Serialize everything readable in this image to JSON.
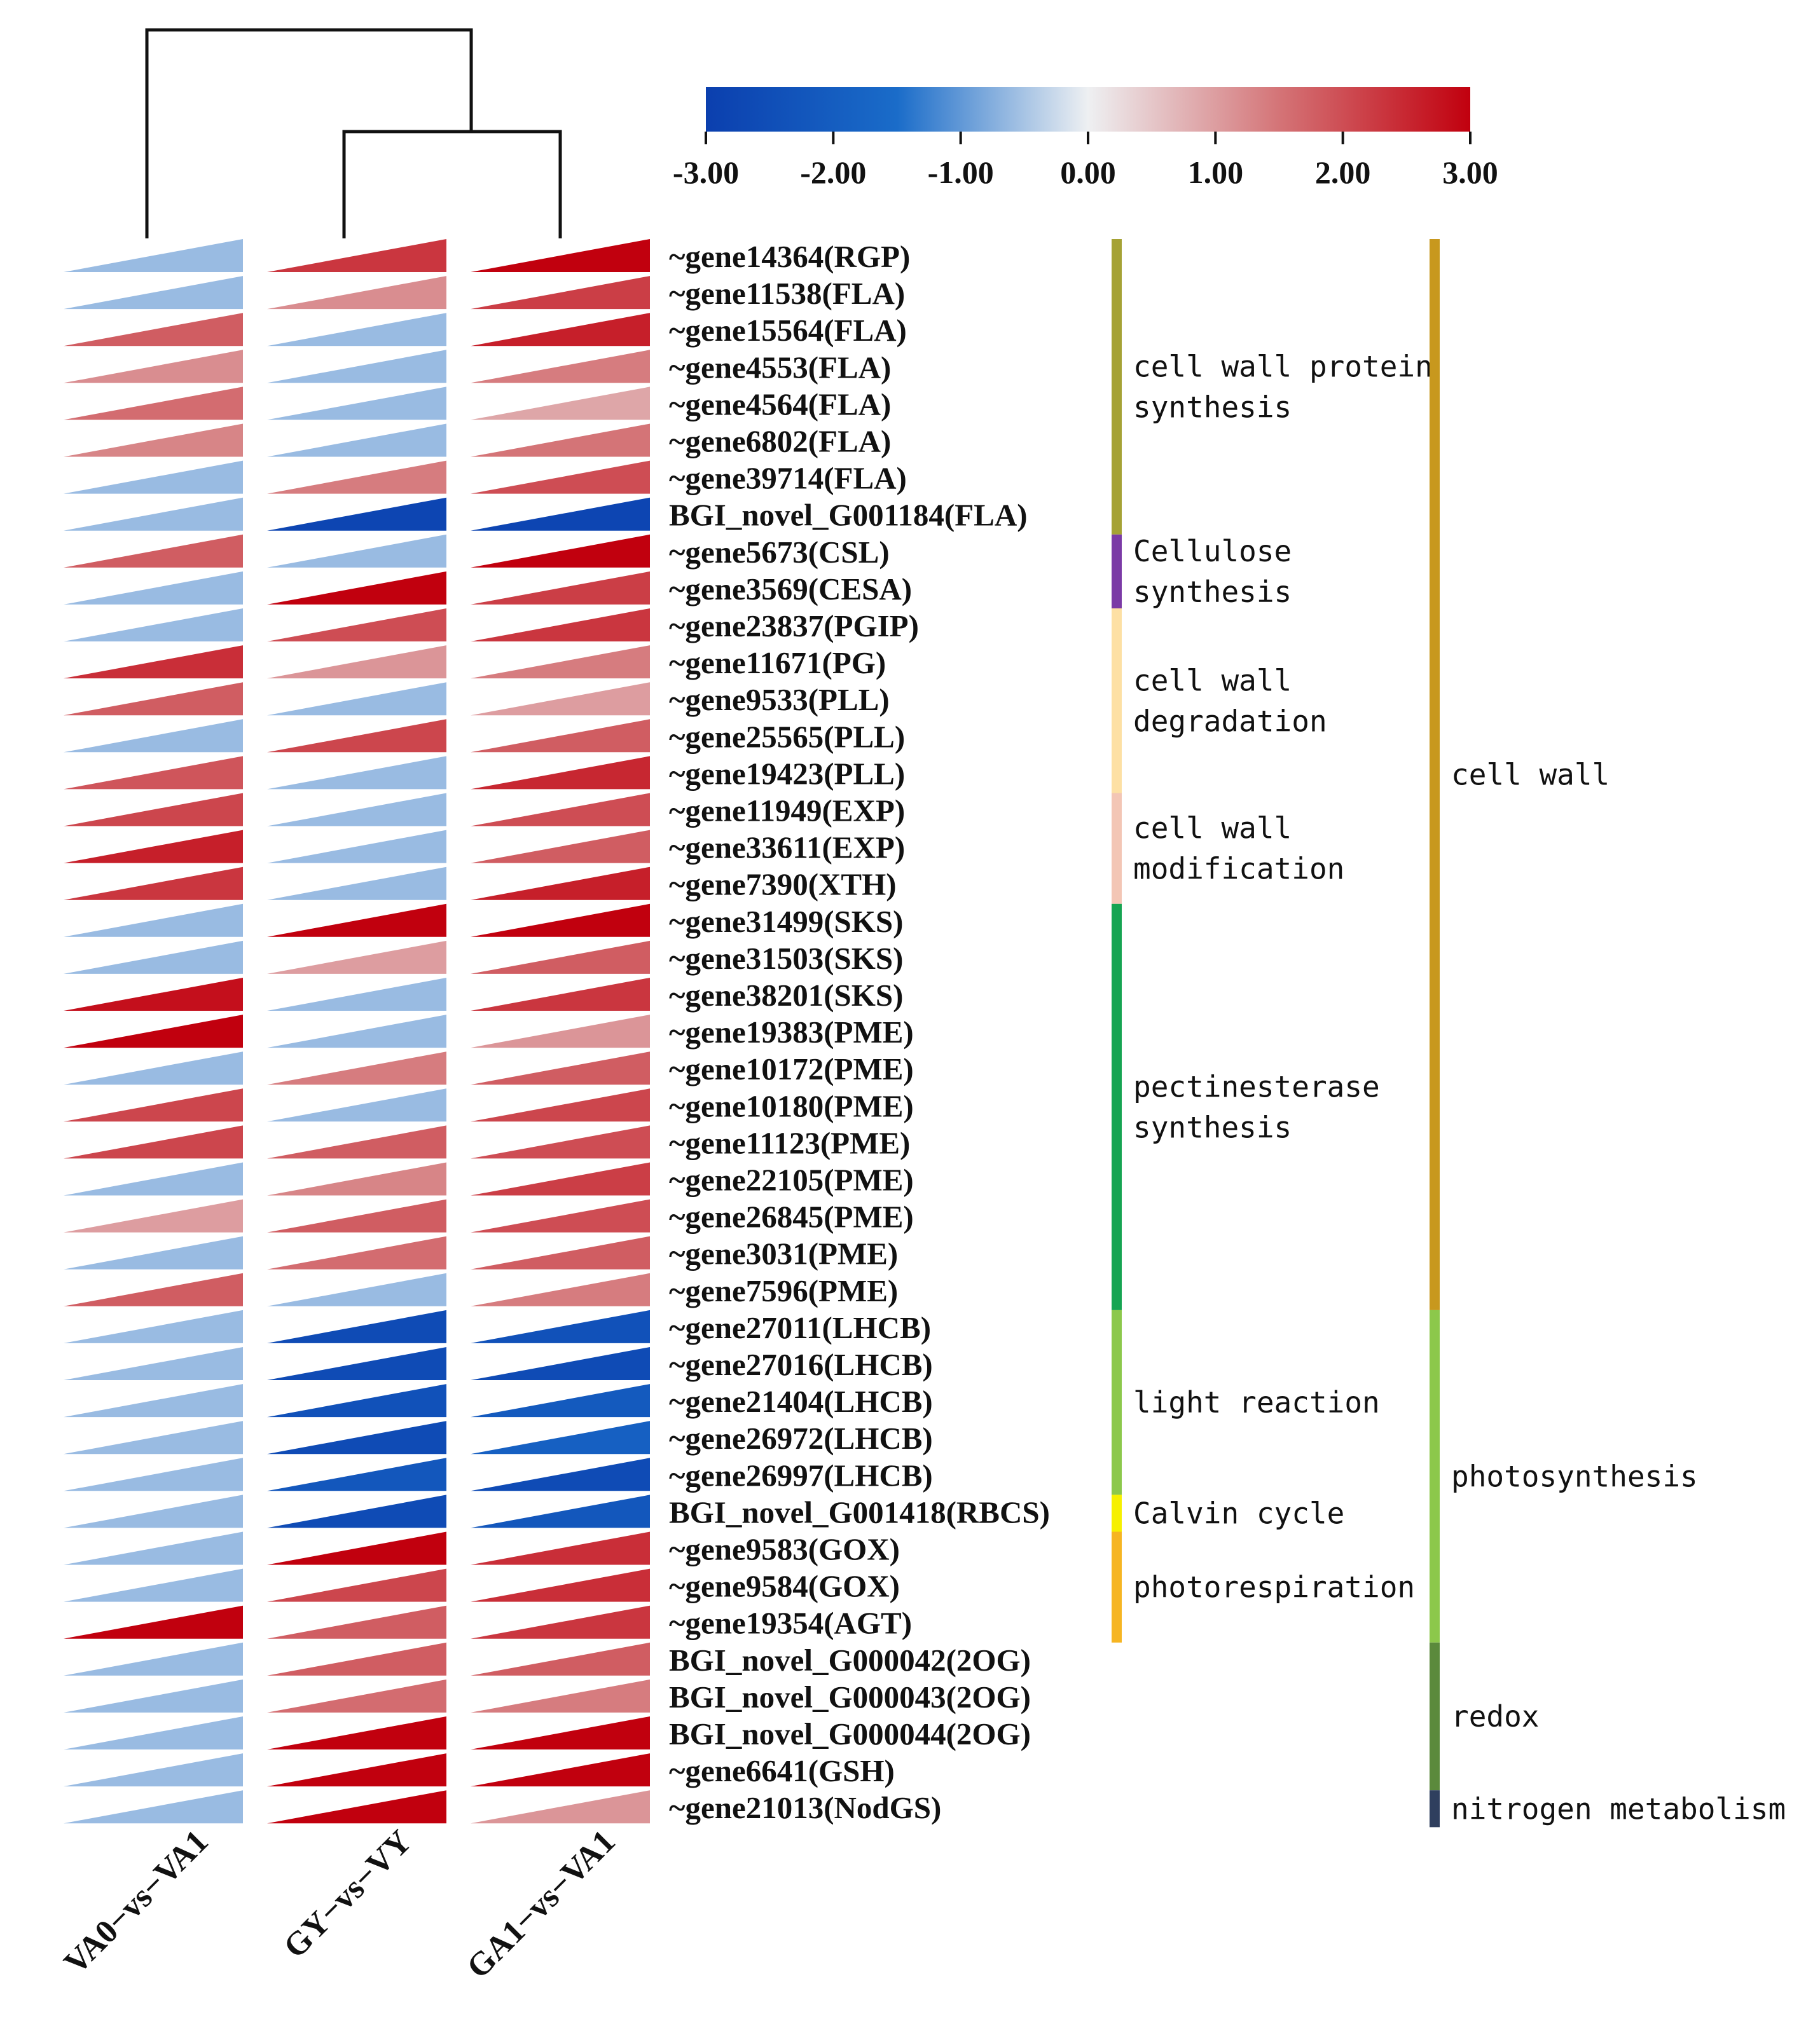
{
  "chart_data": {
    "type": "heatmap",
    "colorbar": {
      "ticks": [
        "-3.00",
        "-2.00",
        "-1.00",
        "0.00",
        "1.00",
        "2.00",
        "3.00"
      ],
      "range": [
        -3,
        3
      ],
      "stops": [
        "#0b3fae",
        "#1a6cc9",
        "#eef0f2",
        "#d47477",
        "#c1000e"
      ]
    },
    "columns": [
      "VA0−vs−VA1",
      "GY−vs−VY",
      "GA1−vs−VA1"
    ],
    "dendrogram": "((GY−vs−VY, GA1−vs−VA1), VA0−vs−VA1)",
    "rows": [
      {
        "gene": "~gene14364(RGP)",
        "values": [
          -0.6,
          2.3,
          3.0
        ]
      },
      {
        "gene": "~gene11538(FLA)",
        "values": [
          -0.6,
          1.2,
          2.2
        ]
      },
      {
        "gene": "~gene15564(FLA)",
        "values": [
          1.8,
          -0.6,
          2.6
        ]
      },
      {
        "gene": "~gene4553(FLA)",
        "values": [
          1.2,
          -0.6,
          1.4
        ]
      },
      {
        "gene": "~gene4564(FLA)",
        "values": [
          1.6,
          -0.6,
          0.9
        ]
      },
      {
        "gene": "~gene6802(FLA)",
        "values": [
          1.3,
          -0.6,
          1.5
        ]
      },
      {
        "gene": "~gene39714(FLA)",
        "values": [
          -0.6,
          1.4,
          2.0
        ]
      },
      {
        "gene": "BGI_novel_G001184(FLA)",
        "values": [
          -0.6,
          -2.8,
          -2.8
        ]
      },
      {
        "gene": "~gene5673(CSL)",
        "values": [
          1.8,
          -0.6,
          3.0
        ]
      },
      {
        "gene": "~gene3569(CESA)",
        "values": [
          -0.6,
          3.0,
          2.2
        ]
      },
      {
        "gene": "~gene23837(PGIP)",
        "values": [
          -0.6,
          2.0,
          2.3
        ]
      },
      {
        "gene": "~gene11671(PG)",
        "values": [
          2.4,
          1.1,
          1.4
        ]
      },
      {
        "gene": "~gene9533(PLL)",
        "values": [
          1.8,
          -0.6,
          1.0
        ]
      },
      {
        "gene": "~gene25565(PLL)",
        "values": [
          -0.6,
          2.1,
          1.8
        ]
      },
      {
        "gene": "~gene19423(PLL)",
        "values": [
          1.9,
          -0.6,
          2.5
        ]
      },
      {
        "gene": "~gene11949(EXP)",
        "values": [
          2.1,
          -0.6,
          2.0
        ]
      },
      {
        "gene": "~gene33611(EXP)",
        "values": [
          2.6,
          -0.6,
          1.8
        ]
      },
      {
        "gene": "~gene7390(XTH)",
        "values": [
          2.3,
          -0.6,
          2.6
        ]
      },
      {
        "gene": "~gene31499(SKS)",
        "values": [
          -0.6,
          3.0,
          3.0
        ]
      },
      {
        "gene": "~gene31503(SKS)",
        "values": [
          -0.6,
          1.0,
          1.8
        ]
      },
      {
        "gene": "~gene38201(SKS)",
        "values": [
          2.8,
          -0.6,
          2.3
        ]
      },
      {
        "gene": "~gene19383(PME)",
        "values": [
          3.0,
          -0.6,
          1.1
        ]
      },
      {
        "gene": "~gene10172(PME)",
        "values": [
          -0.6,
          1.4,
          1.8
        ]
      },
      {
        "gene": "~gene10180(PME)",
        "values": [
          2.1,
          -0.6,
          2.1
        ]
      },
      {
        "gene": "~gene11123(PME)",
        "values": [
          2.1,
          1.8,
          2.0
        ]
      },
      {
        "gene": "~gene22105(PME)",
        "values": [
          -0.6,
          1.3,
          2.2
        ]
      },
      {
        "gene": "~gene26845(PME)",
        "values": [
          1.0,
          1.8,
          2.0
        ]
      },
      {
        "gene": "~gene3031(PME)",
        "values": [
          -0.6,
          1.6,
          1.8
        ]
      },
      {
        "gene": "~gene7596(PME)",
        "values": [
          1.8,
          -0.6,
          1.4
        ]
      },
      {
        "gene": "~gene27011(LHCB)",
        "values": [
          -0.6,
          -2.6,
          -2.4
        ]
      },
      {
        "gene": "~gene27016(LHCB)",
        "values": [
          -0.6,
          -2.6,
          -2.6
        ]
      },
      {
        "gene": "~gene21404(LHCB)",
        "values": [
          -0.6,
          -2.4,
          -2.1
        ]
      },
      {
        "gene": "~gene26972(LHCB)",
        "values": [
          -0.6,
          -2.6,
          -1.9
        ]
      },
      {
        "gene": "~gene26997(LHCB)",
        "values": [
          -0.6,
          -2.2,
          -2.6
        ]
      },
      {
        "gene": "BGI_novel_G001418(RBCS)",
        "values": [
          -0.6,
          -2.6,
          -2.2
        ]
      },
      {
        "gene": "~gene9583(GOX)",
        "values": [
          -0.6,
          3.0,
          2.4
        ]
      },
      {
        "gene": "~gene9584(GOX)",
        "values": [
          -0.6,
          2.1,
          2.4
        ]
      },
      {
        "gene": "~gene19354(AGT)",
        "values": [
          3.0,
          1.8,
          2.3
        ]
      },
      {
        "gene": "BGI_novel_G000042(2OG)",
        "values": [
          -0.6,
          1.8,
          1.8
        ]
      },
      {
        "gene": "BGI_novel_G000043(2OG)",
        "values": [
          -0.6,
          1.6,
          1.4
        ]
      },
      {
        "gene": "BGI_novel_G000044(2OG)",
        "values": [
          -0.6,
          3.0,
          3.0
        ]
      },
      {
        "gene": "~gene6641(GSH)",
        "values": [
          -0.6,
          3.0,
          3.0
        ]
      },
      {
        "gene": "~gene21013(NodGS)",
        "values": [
          -0.6,
          3.0,
          1.1
        ]
      }
    ],
    "inner_categories": [
      {
        "label": [
          "cell wall protein",
          "synthesis"
        ],
        "start": 0,
        "end": 7,
        "color": "#a5a234"
      },
      {
        "label": [
          "Cellulose",
          "synthesis"
        ],
        "start": 8,
        "end": 9,
        "color": "#7b3aa6"
      },
      {
        "label": [
          "cell wall",
          "degradation"
        ],
        "start": 10,
        "end": 14,
        "color": "#fde0a4"
      },
      {
        "label": [
          "cell wall",
          "modification"
        ],
        "start": 15,
        "end": 17,
        "color": "#f3c6b5"
      },
      {
        "label": [
          "pectinesterase",
          "synthesis"
        ],
        "start": 18,
        "end": 28,
        "color": "#15a452"
      },
      {
        "label": [
          "light reaction"
        ],
        "start": 29,
        "end": 33,
        "color": "#8cc84b"
      },
      {
        "label": [
          "Calvin cycle"
        ],
        "start": 34,
        "end": 34,
        "color": "#f6f000"
      },
      {
        "label": [
          "photorespiration"
        ],
        "start": 35,
        "end": 37,
        "color": "#f6b522"
      }
    ],
    "outer_categories": [
      {
        "label": "cell wall",
        "start": 0,
        "end": 28,
        "color": "#c8981e"
      },
      {
        "label": "photosynthesis",
        "start": 29,
        "end": 37,
        "color": "#8cc84b"
      },
      {
        "label": "redox",
        "start": 38,
        "end": 41,
        "color": "#5b8a3c"
      },
      {
        "label": "nitrogen metabolism",
        "start": 42,
        "end": 42,
        "color": "#2f3f5e"
      }
    ]
  }
}
